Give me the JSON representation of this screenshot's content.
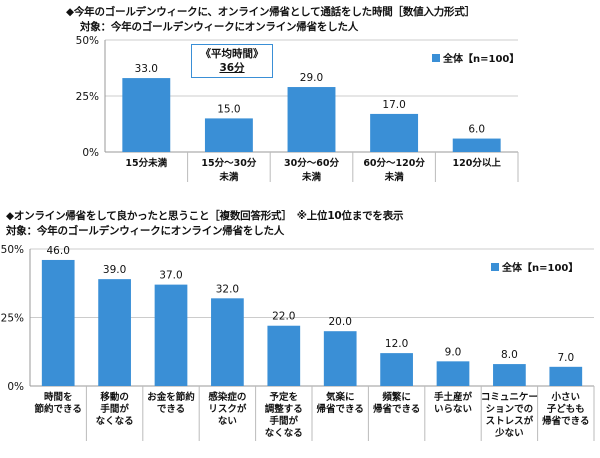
{
  "chart_data": [
    {
      "type": "bar",
      "title": "◆今年のゴールデンウィークに、オンライン帰省として通話をした時間［数値入力形式］",
      "subtitle": "対象：今年のゴールデンウィークにオンライン帰省をした人",
      "categories": [
        [
          "15分未満"
        ],
        [
          "15分～30分",
          "未満"
        ],
        [
          "30分～60分",
          "未満"
        ],
        [
          "60分～120分",
          "未満"
        ],
        [
          "120分以上"
        ]
      ],
      "series": [
        {
          "name": "全体【n=100】",
          "values": [
            33.0,
            15.0,
            29.0,
            17.0,
            6.0
          ]
        }
      ],
      "value_labels": [
        "33.0",
        "15.0",
        "29.0",
        "17.0",
        "6.0"
      ],
      "yticks": [
        "0%",
        "25%",
        "50%"
      ],
      "ylim": [
        0,
        50
      ],
      "annotation": {
        "line1": "《平均時間》",
        "line2": "36分"
      },
      "bar_color": "#3a8fd6",
      "legend_position": "top-right"
    },
    {
      "type": "bar",
      "title": "◆オンライン帰省をして良かったと思うこと［複数回答形式］　※上位10位までを表示",
      "subtitle": "対象：今年のゴールデンウィークにオンライン帰省をした人",
      "categories": [
        [
          "時間を",
          "節約できる"
        ],
        [
          "移動の",
          "手間が",
          "なくなる"
        ],
        [
          "お金を節約",
          "できる"
        ],
        [
          "感染症の",
          "リスクが",
          "ない"
        ],
        [
          "予定を",
          "調整する",
          "手間が",
          "なくなる"
        ],
        [
          "気楽に",
          "帰省できる"
        ],
        [
          "頻繁に",
          "帰省できる"
        ],
        [
          "手土産が",
          "いらない"
        ],
        [
          "コミュニケー",
          "ションでの",
          "ストレスが",
          "少ない"
        ],
        [
          "小さい",
          "子どもも",
          "帰省できる"
        ]
      ],
      "series": [
        {
          "name": "全体【n=100】",
          "values": [
            46.0,
            39.0,
            37.0,
            32.0,
            22.0,
            20.0,
            12.0,
            9.0,
            8.0,
            7.0
          ]
        }
      ],
      "value_labels": [
        "46.0",
        "39.0",
        "37.0",
        "32.0",
        "22.0",
        "20.0",
        "12.0",
        "9.0",
        "8.0",
        "7.0"
      ],
      "yticks": [
        "0%",
        "25%",
        "50%"
      ],
      "ylim": [
        0,
        50
      ],
      "bar_color": "#3a8fd6",
      "legend_position": "top-right"
    }
  ]
}
